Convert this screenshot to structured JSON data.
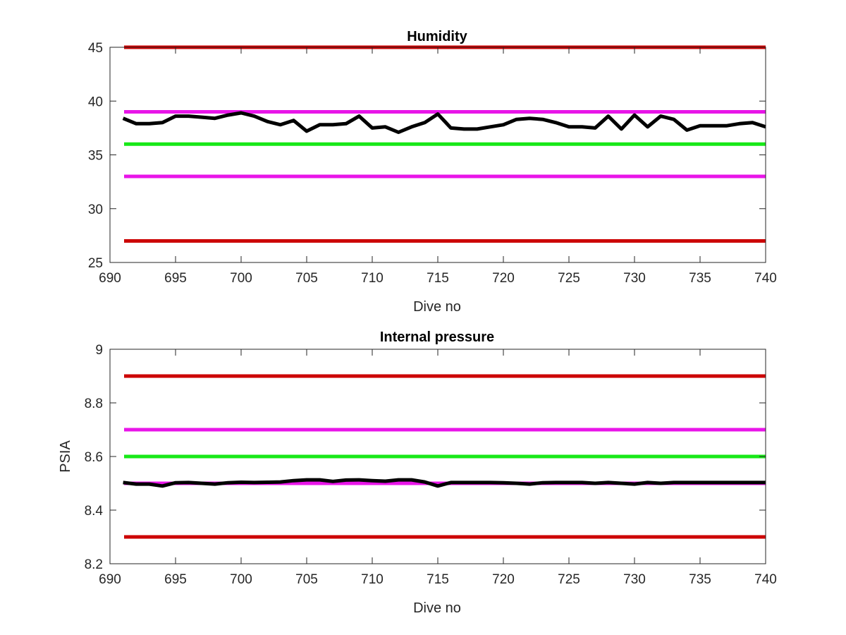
{
  "chart_data": [
    {
      "type": "line",
      "title": "Humidity",
      "xlabel": "Dive no",
      "ylabel": "",
      "xlim": [
        690,
        740
      ],
      "ylim": [
        25,
        45
      ],
      "xticks": [
        690,
        695,
        700,
        705,
        710,
        715,
        720,
        725,
        730,
        735,
        740
      ],
      "yticks": [
        25,
        30,
        35,
        40,
        45
      ],
      "grid": false,
      "legend": "none",
      "thresholds": [
        {
          "value": 45,
          "color": "#cc0000"
        },
        {
          "value": 39,
          "color": "#e815e8"
        },
        {
          "value": 36,
          "color": "#17e817"
        },
        {
          "value": 33,
          "color": "#e815e8"
        },
        {
          "value": 27,
          "color": "#cc0000"
        }
      ],
      "series": [
        {
          "color": "#000000",
          "x": [
            691,
            692,
            693,
            694,
            695,
            696,
            697,
            698,
            699,
            700,
            701,
            702,
            703,
            704,
            705,
            706,
            707,
            708,
            709,
            710,
            711,
            712,
            713,
            714,
            715,
            716,
            717,
            718,
            719,
            720,
            721,
            722,
            723,
            724,
            725,
            726,
            727,
            728,
            729,
            730,
            731,
            732,
            733,
            734,
            735,
            736,
            737,
            738,
            739,
            740
          ],
          "y": [
            38.4,
            37.9,
            37.9,
            38.0,
            38.6,
            38.6,
            38.5,
            38.4,
            38.7,
            38.9,
            38.6,
            38.1,
            37.8,
            38.2,
            37.2,
            37.8,
            37.8,
            37.9,
            38.6,
            37.5,
            37.6,
            37.1,
            37.6,
            38.0,
            38.8,
            37.5,
            37.4,
            37.4,
            37.6,
            37.8,
            38.3,
            38.4,
            38.3,
            38.0,
            37.6,
            37.6,
            37.5,
            38.6,
            37.4,
            38.7,
            37.6,
            38.6,
            38.3,
            37.3,
            37.7,
            37.7,
            37.7,
            37.9,
            38.0,
            37.6
          ]
        }
      ]
    },
    {
      "type": "line",
      "title": "Internal pressure",
      "xlabel": "Dive no",
      "ylabel": "PSIA",
      "xlim": [
        690,
        740
      ],
      "ylim": [
        8.2,
        9
      ],
      "xticks": [
        690,
        695,
        700,
        705,
        710,
        715,
        720,
        725,
        730,
        735,
        740
      ],
      "yticks": [
        8.2,
        8.4,
        8.6,
        8.8,
        9
      ],
      "grid": false,
      "legend": "none",
      "thresholds": [
        {
          "value": 8.9,
          "color": "#cc0000"
        },
        {
          "value": 8.7,
          "color": "#e815e8"
        },
        {
          "value": 8.6,
          "color": "#17e817"
        },
        {
          "value": 8.5,
          "color": "#e815e8"
        },
        {
          "value": 8.3,
          "color": "#cc0000"
        }
      ],
      "series": [
        {
          "color": "#000000",
          "x": [
            691,
            692,
            693,
            694,
            695,
            696,
            697,
            698,
            699,
            700,
            701,
            702,
            703,
            704,
            705,
            706,
            707,
            708,
            709,
            710,
            711,
            712,
            713,
            714,
            715,
            716,
            717,
            718,
            719,
            720,
            721,
            722,
            723,
            724,
            725,
            726,
            727,
            728,
            729,
            730,
            731,
            732,
            733,
            734,
            735,
            736,
            737,
            738,
            739,
            740
          ],
          "y": [
            8.503,
            8.497,
            8.497,
            8.49,
            8.502,
            8.503,
            8.5,
            8.497,
            8.502,
            8.504,
            8.503,
            8.504,
            8.505,
            8.51,
            8.513,
            8.513,
            8.507,
            8.512,
            8.513,
            8.51,
            8.508,
            8.513,
            8.513,
            8.505,
            8.49,
            8.503,
            8.503,
            8.503,
            8.503,
            8.502,
            8.5,
            8.497,
            8.502,
            8.503,
            8.503,
            8.503,
            8.5,
            8.503,
            8.5,
            8.497,
            8.503,
            8.5,
            8.503,
            8.503,
            8.503,
            8.503,
            8.503,
            8.503,
            8.503,
            8.503
          ]
        }
      ]
    }
  ]
}
